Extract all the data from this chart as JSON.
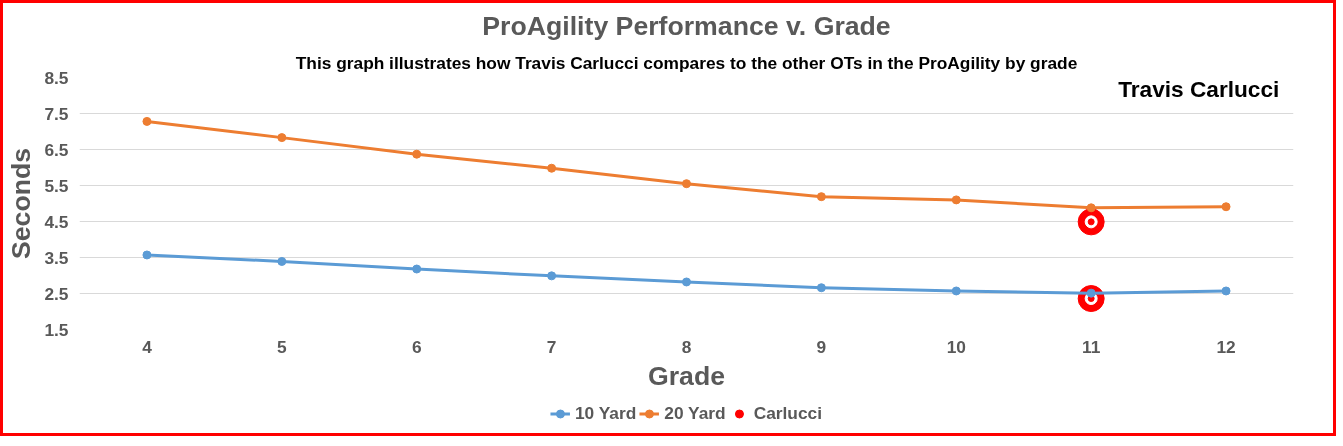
{
  "chart_data": {
    "type": "line",
    "title": "ProAgility Performance v. Grade",
    "subtitle": "This graph illustrates how Travis Carlucci compares to the other OTs in the ProAgility by grade",
    "xlabel": "Grade",
    "ylabel": "Seconds",
    "categories": [
      "4",
      "5",
      "6",
      "7",
      "8",
      "9",
      "10",
      "11",
      "12"
    ],
    "series": [
      {
        "name": "10 Yard",
        "color": "#5b9bd5",
        "values": [
          3.57,
          3.39,
          3.18,
          2.99,
          2.82,
          2.66,
          2.57,
          2.51,
          2.57
        ]
      },
      {
        "name": "20 Yard",
        "color": "#ed7d31",
        "values": [
          7.28,
          6.83,
          6.37,
          5.98,
          5.55,
          5.19,
          5.1,
          4.88,
          4.91
        ]
      },
      {
        "name": "Carlucci",
        "type": "scatter",
        "color": "#ff0000",
        "x": [
          "11",
          "11"
        ],
        "values": [
          4.49,
          2.36
        ]
      }
    ],
    "annotations": [
      "Travis Carlucci"
    ],
    "ylim": [
      1.5,
      8.5
    ],
    "yticks": [
      1.5,
      2.5,
      3.5,
      4.5,
      5.5,
      6.5,
      7.5,
      8.5
    ],
    "grid": "y",
    "legend": "bottom",
    "marker": "circle",
    "line_style": "solid"
  }
}
